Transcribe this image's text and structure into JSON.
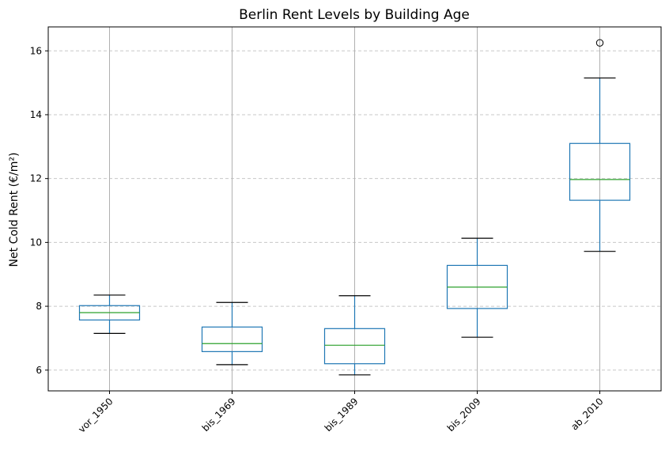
{
  "chart_data": {
    "type": "boxplot",
    "title": "Berlin Rent Levels by Building Age",
    "xlabel": "",
    "ylabel": "Net Cold Rent (€/m²)",
    "ylim": [
      5.35,
      16.75
    ],
    "yticks": [
      6,
      8,
      10,
      12,
      14,
      16
    ],
    "ytick_labels": [
      "6",
      "8",
      "10",
      "12",
      "14",
      "16"
    ],
    "categories": [
      "vor_1950",
      "bis_1969",
      "bis_1989",
      "bis_2009",
      "ab_2010"
    ],
    "boxes": [
      {
        "category": "vor_1950",
        "whisker_low": 7.15,
        "q1": 7.57,
        "median": 7.8,
        "q3": 8.02,
        "whisker_high": 8.35,
        "outliers": []
      },
      {
        "category": "bis_1969",
        "whisker_low": 6.17,
        "q1": 6.58,
        "median": 6.83,
        "q3": 7.35,
        "whisker_high": 8.12,
        "outliers": []
      },
      {
        "category": "bis_1989",
        "whisker_low": 5.85,
        "q1": 6.2,
        "median": 6.78,
        "q3": 7.3,
        "whisker_high": 8.33,
        "outliers": []
      },
      {
        "category": "bis_2009",
        "whisker_low": 7.03,
        "q1": 7.93,
        "median": 8.6,
        "q3": 9.28,
        "whisker_high": 10.13,
        "outliers": []
      },
      {
        "category": "ab_2010",
        "whisker_low": 9.72,
        "q1": 11.32,
        "median": 11.97,
        "q3": 13.1,
        "whisker_high": 15.15,
        "outliers": [
          16.25
        ]
      }
    ],
    "grid": {
      "y": true,
      "x": true
    },
    "colors": {
      "box": "#1f77b4",
      "median": "#2ca02c",
      "whisker_cap": "#000000",
      "grid_y": "#c8c8c8",
      "grid_x": "#b0b0b0"
    }
  }
}
